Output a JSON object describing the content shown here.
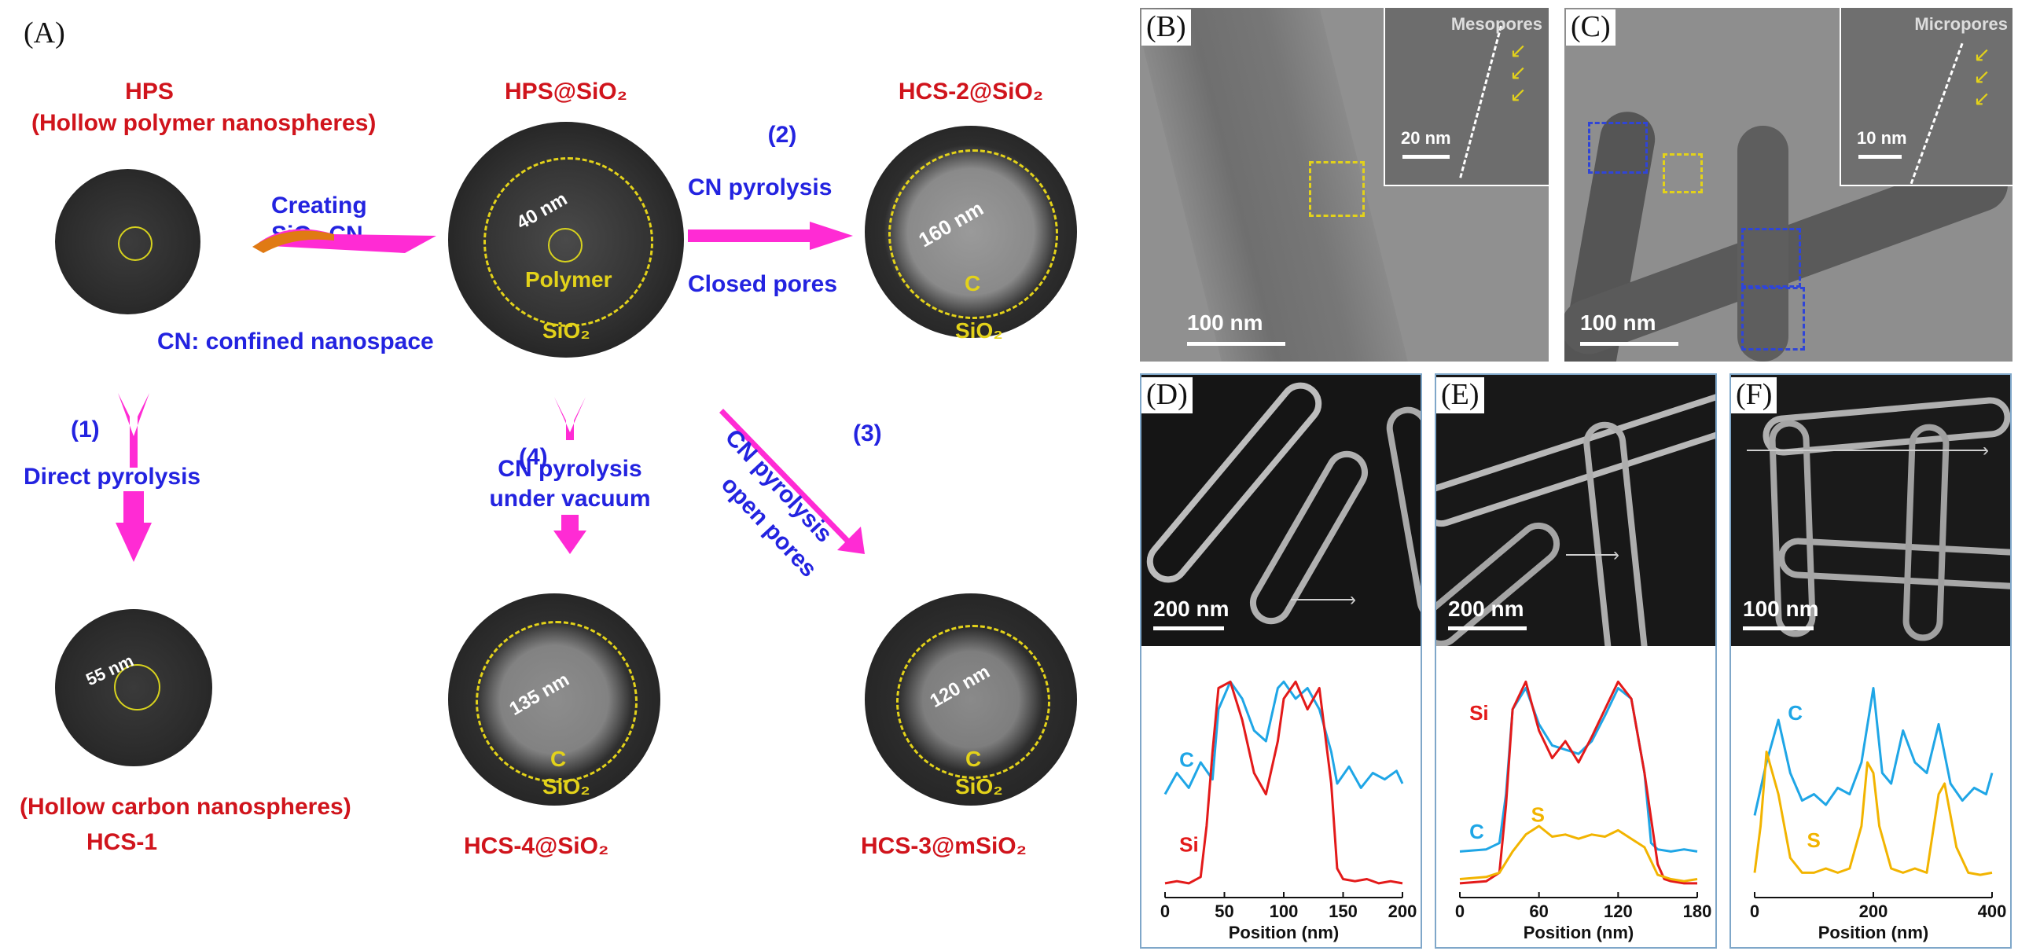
{
  "panelA": {
    "label": "(A)",
    "hps": {
      "title": "HPS",
      "subtitle": "(Hollow polymer nanospheres)"
    },
    "hps_sio2": {
      "title": "HPS@SiO₂",
      "measure": "40 nm",
      "inner": "Polymer",
      "shell": "SiO₂"
    },
    "hcs2": {
      "title": "HCS-2@SiO₂",
      "measure": "160 nm",
      "inner": "C",
      "shell": "SiO₂"
    },
    "creating": {
      "line1": "Creating",
      "line2": "SiO₂ CN"
    },
    "step2": {
      "num": "(2)",
      "line1": "CN pyrolysis",
      "line2": "Closed pores"
    },
    "cn_note": "CN: confined nanospace",
    "step1": {
      "num": "(1)",
      "text": "Direct pyrolysis"
    },
    "step4": {
      "num": "(4)",
      "line1": "CN pyrolysis",
      "line2": "under vacuum"
    },
    "step3": {
      "num": "(3)",
      "line1": "CN pyrolysis",
      "line2": "open pores"
    },
    "hcs1": {
      "measure": "55 nm",
      "caption1": "(Hollow carbon nanospheres)",
      "caption2": "HCS-1"
    },
    "hcs4": {
      "measure": "135 nm",
      "inner": "C",
      "shell": "SiO₂",
      "caption": "HCS-4@SiO₂"
    },
    "hcs3": {
      "measure": "120 nm",
      "inner": "C",
      "shell": "SiO₂",
      "caption": "HCS-3@mSiO₂"
    }
  },
  "panelB": {
    "label": "(B)",
    "scale": "100 nm",
    "inset_title": "Mesopores",
    "inset_scale": "20 nm"
  },
  "panelC": {
    "label": "(C)",
    "scale": "100 nm",
    "inset_title": "Micropores",
    "inset_scale": "10 nm"
  },
  "panelD": {
    "label": "(D)",
    "scale": "200 nm"
  },
  "panelE": {
    "label": "(E)",
    "scale": "200 nm"
  },
  "panelF": {
    "label": "(F)",
    "scale": "100 nm"
  },
  "colors": {
    "red": "#d0141c",
    "blue": "#2323e0",
    "magenta": "#ff2bd4",
    "yellow": "#e3d21a",
    "C_line": "#1fa6e6",
    "Si_line": "#e31a1a",
    "S_line": "#f2b400"
  },
  "chart_data": [
    {
      "type": "line",
      "panel": "D",
      "xlabel": "Position (nm)",
      "xticks": [
        0,
        50,
        100,
        150,
        200
      ],
      "xlim": [
        0,
        200
      ],
      "ylim": [
        0,
        1
      ],
      "series": [
        {
          "name": "C",
          "x": [
            0,
            10,
            20,
            30,
            40,
            45,
            55,
            65,
            75,
            85,
            95,
            100,
            110,
            120,
            130,
            140,
            145,
            155,
            165,
            175,
            185,
            195,
            200
          ],
          "y": [
            0.45,
            0.55,
            0.48,
            0.6,
            0.52,
            0.85,
            0.98,
            0.9,
            0.75,
            0.7,
            0.95,
            0.98,
            0.9,
            0.95,
            0.85,
            0.65,
            0.5,
            0.58,
            0.48,
            0.55,
            0.52,
            0.56,
            0.5
          ]
        },
        {
          "name": "Si",
          "x": [
            0,
            10,
            20,
            30,
            35,
            40,
            45,
            55,
            65,
            75,
            85,
            95,
            100,
            110,
            120,
            130,
            140,
            145,
            150,
            160,
            170,
            180,
            190,
            200
          ],
          "y": [
            0.03,
            0.04,
            0.03,
            0.06,
            0.3,
            0.65,
            0.95,
            0.98,
            0.8,
            0.55,
            0.45,
            0.7,
            0.9,
            0.98,
            0.85,
            0.95,
            0.5,
            0.1,
            0.05,
            0.04,
            0.05,
            0.03,
            0.04,
            0.03
          ]
        }
      ]
    },
    {
      "type": "line",
      "panel": "E",
      "xlabel": "Position (nm)",
      "xticks": [
        0,
        60,
        120,
        180
      ],
      "xlim": [
        0,
        180
      ],
      "ylim": [
        0,
        1
      ],
      "series": [
        {
          "name": "C",
          "x": [
            0,
            20,
            30,
            35,
            40,
            50,
            60,
            70,
            80,
            90,
            100,
            110,
            120,
            130,
            140,
            145,
            150,
            160,
            170,
            180
          ],
          "y": [
            0.18,
            0.19,
            0.22,
            0.45,
            0.85,
            0.95,
            0.78,
            0.68,
            0.66,
            0.64,
            0.7,
            0.82,
            0.95,
            0.9,
            0.55,
            0.22,
            0.19,
            0.18,
            0.19,
            0.18
          ]
        },
        {
          "name": "Si",
          "x": [
            0,
            20,
            30,
            35,
            40,
            50,
            60,
            70,
            80,
            90,
            100,
            110,
            120,
            130,
            140,
            150,
            155,
            160,
            170,
            180
          ],
          "y": [
            0.03,
            0.04,
            0.08,
            0.4,
            0.85,
            0.98,
            0.75,
            0.62,
            0.7,
            0.6,
            0.72,
            0.85,
            0.98,
            0.9,
            0.55,
            0.12,
            0.05,
            0.04,
            0.03,
            0.03
          ]
        },
        {
          "name": "S",
          "x": [
            0,
            20,
            30,
            40,
            50,
            60,
            70,
            80,
            90,
            100,
            110,
            120,
            130,
            140,
            150,
            160,
            170,
            180
          ],
          "y": [
            0.05,
            0.06,
            0.08,
            0.18,
            0.26,
            0.3,
            0.25,
            0.26,
            0.24,
            0.26,
            0.25,
            0.28,
            0.24,
            0.2,
            0.07,
            0.05,
            0.04,
            0.05
          ]
        }
      ]
    },
    {
      "type": "line",
      "panel": "F",
      "xlabel": "Position (nm)",
      "xticks": [
        0,
        200,
        400
      ],
      "xlim": [
        0,
        400
      ],
      "ylim": [
        0,
        1
      ],
      "series": [
        {
          "name": "C",
          "x": [
            0,
            20,
            40,
            60,
            80,
            100,
            120,
            140,
            160,
            180,
            200,
            215,
            230,
            250,
            270,
            290,
            310,
            330,
            350,
            370,
            390,
            400
          ],
          "y": [
            0.35,
            0.6,
            0.8,
            0.55,
            0.42,
            0.45,
            0.4,
            0.48,
            0.45,
            0.6,
            0.95,
            0.55,
            0.5,
            0.75,
            0.6,
            0.55,
            0.78,
            0.5,
            0.42,
            0.48,
            0.45,
            0.55
          ]
        },
        {
          "name": "S",
          "x": [
            0,
            10,
            20,
            40,
            60,
            80,
            100,
            120,
            140,
            160,
            180,
            190,
            200,
            210,
            230,
            250,
            270,
            290,
            310,
            320,
            340,
            360,
            380,
            400
          ],
          "y": [
            0.08,
            0.3,
            0.65,
            0.45,
            0.15,
            0.08,
            0.08,
            0.1,
            0.08,
            0.1,
            0.3,
            0.6,
            0.55,
            0.3,
            0.1,
            0.08,
            0.1,
            0.08,
            0.45,
            0.5,
            0.2,
            0.08,
            0.07,
            0.08
          ]
        }
      ]
    }
  ]
}
